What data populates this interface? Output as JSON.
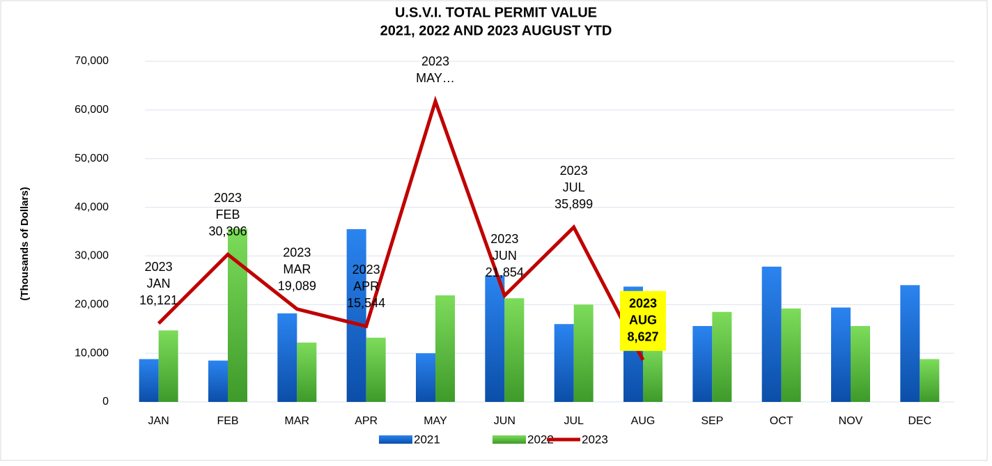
{
  "chart_data": {
    "type": "bar",
    "title": [
      "U.S.V.I. TOTAL PERMIT VALUE",
      "2021, 2022 AND 2023 AUGUST YTD"
    ],
    "y_label": "(Thousands of Dollars)",
    "categories": [
      "JAN",
      "FEB",
      "MAR",
      "APR",
      "MAY",
      "JUN",
      "JUL",
      "AUG",
      "SEP",
      "OCT",
      "NOV",
      "DEC"
    ],
    "series": [
      {
        "name": "2021",
        "type": "bar",
        "color": "#1f6fd6",
        "values": [
          8800,
          8500,
          18200,
          35500,
          10000,
          26000,
          16000,
          23700,
          15600,
          27800,
          19400,
          24000
        ]
      },
      {
        "name": "2022",
        "type": "bar",
        "color": "#5cc43c",
        "values": [
          14700,
          35600,
          12200,
          13200,
          21900,
          21300,
          20000,
          11500,
          18500,
          19200,
          15600,
          8800
        ]
      },
      {
        "name": "2023",
        "type": "line",
        "color": "#c00000",
        "values": [
          16121,
          30306,
          19089,
          15544,
          61800,
          21854,
          35899,
          8627,
          null,
          null,
          null,
          null
        ],
        "value_labels": [
          [
            "2023",
            "JAN",
            "16,121"
          ],
          [
            "2023",
            "FEB",
            "30,306"
          ],
          [
            "2023",
            "MAR",
            "19,089"
          ],
          [
            "2023",
            "APR",
            "15,544"
          ],
          [
            "2023",
            "MAY…"
          ],
          [
            "2023",
            "JUN",
            "21,854"
          ],
          [
            "2023",
            "JUL",
            "35,899"
          ],
          [
            "2023",
            "AUG",
            "8,627"
          ],
          null,
          null,
          null,
          null
        ],
        "label_highlight": {
          "index": 7,
          "color": "#ffff00"
        }
      }
    ],
    "ylim": [
      0,
      70000
    ],
    "yticks": [
      {
        "value": 0,
        "label": "0"
      },
      {
        "value": 10000,
        "label": "10,000"
      },
      {
        "value": 20000,
        "label": "20,000"
      },
      {
        "value": 30000,
        "label": "30,000"
      },
      {
        "value": 40000,
        "label": "40,000"
      },
      {
        "value": 50000,
        "label": "50,000"
      },
      {
        "value": 60000,
        "label": "60,000"
      },
      {
        "value": 70000,
        "label": "70,000"
      }
    ],
    "grid": true,
    "legend": "bottom"
  }
}
